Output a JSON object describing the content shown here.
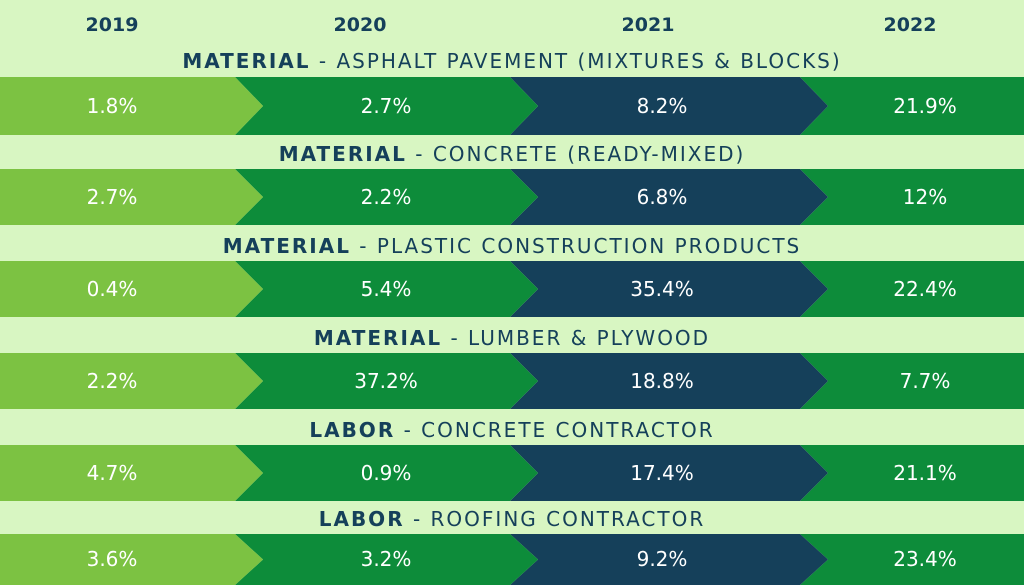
{
  "colors": {
    "background": "#d8f6c2",
    "header_text": "#15405a",
    "value_text": "#ffffff",
    "segments": [
      "#7cc242",
      "#0d8c3a",
      "#15405a",
      "#0d8c3a"
    ]
  },
  "chart_data": {
    "type": "table",
    "years": [
      "2019",
      "2020",
      "2021",
      "2022"
    ],
    "rows": [
      {
        "kind": "MATERIAL",
        "name": "ASPHALT PAVEMENT (MIXTURES & BLOCKS)",
        "values": [
          "1.8%",
          "2.7%",
          "8.2%",
          "21.9%"
        ]
      },
      {
        "kind": "MATERIAL",
        "name": "CONCRETE (READY-MIXED)",
        "values": [
          "2.7%",
          "2.2%",
          "6.8%",
          "12%"
        ]
      },
      {
        "kind": "MATERIAL",
        "name": "PLASTIC CONSTRUCTION PRODUCTS",
        "values": [
          "0.4%",
          "5.4%",
          "35.4%",
          "22.4%"
        ]
      },
      {
        "kind": "MATERIAL",
        "name": "LUMBER & PLYWOOD",
        "values": [
          "2.2%",
          "37.2%",
          "18.8%",
          "7.7%"
        ]
      },
      {
        "kind": "LABOR",
        "name": "CONCRETE CONTRACTOR",
        "values": [
          "4.7%",
          "0.9%",
          "17.4%",
          "21.1%"
        ]
      },
      {
        "kind": "LABOR",
        "name": "ROOFING CONTRACTOR",
        "values": [
          "3.6%",
          "3.2%",
          "9.2%",
          "23.4%"
        ]
      }
    ]
  }
}
